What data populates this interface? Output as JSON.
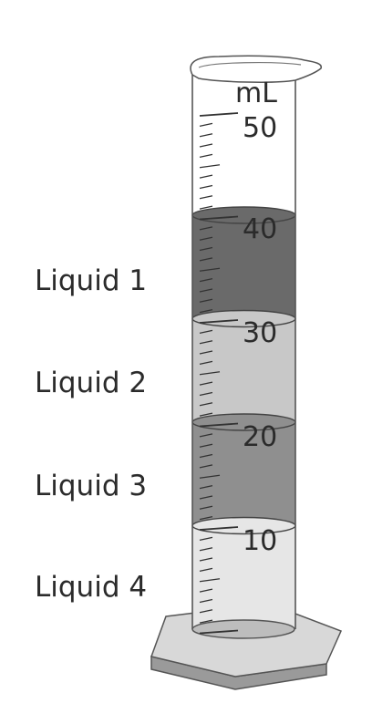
{
  "cylinder": {
    "unit": "mL",
    "capacity": 50,
    "scale_labels": [
      "50",
      "40",
      "30",
      "20",
      "10"
    ],
    "glass_color": "#ffffff",
    "outline_color": "#555555",
    "base_color": "#d8d8d8"
  },
  "layers": [
    {
      "label": "Liquid 1",
      "from_ml": 30,
      "to_ml": 40,
      "color": "#6a6a6a"
    },
    {
      "label": "Liquid 2",
      "from_ml": 20,
      "to_ml": 30,
      "color": "#c8c8c8"
    },
    {
      "label": "Liquid 3",
      "from_ml": 10,
      "to_ml": 20,
      "color": "#8f8f8f"
    },
    {
      "label": "Liquid 4",
      "from_ml": 0,
      "to_ml": 10,
      "color": "#e6e6e6"
    }
  ]
}
